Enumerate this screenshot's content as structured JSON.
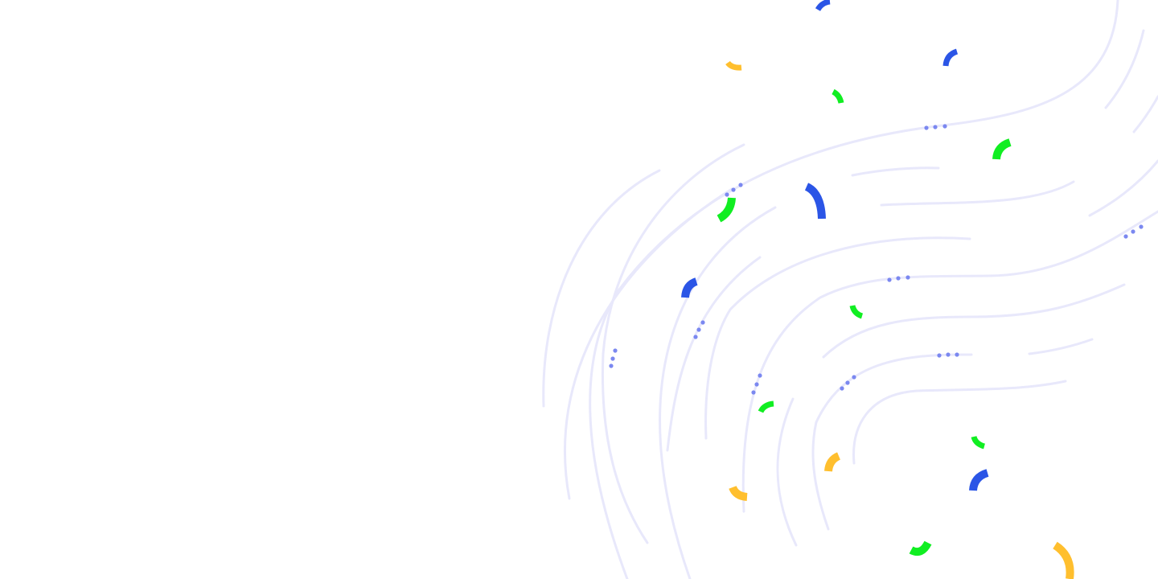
{
  "page": {
    "background": "#ffffff",
    "decoration": "swirling-lines-confetti-background"
  },
  "colors": {
    "line": "#e8e8fb",
    "dots": "#7b88f0",
    "blue": "#2b55e6",
    "green": "#11ee22",
    "yellow": "#ffbf2e"
  }
}
